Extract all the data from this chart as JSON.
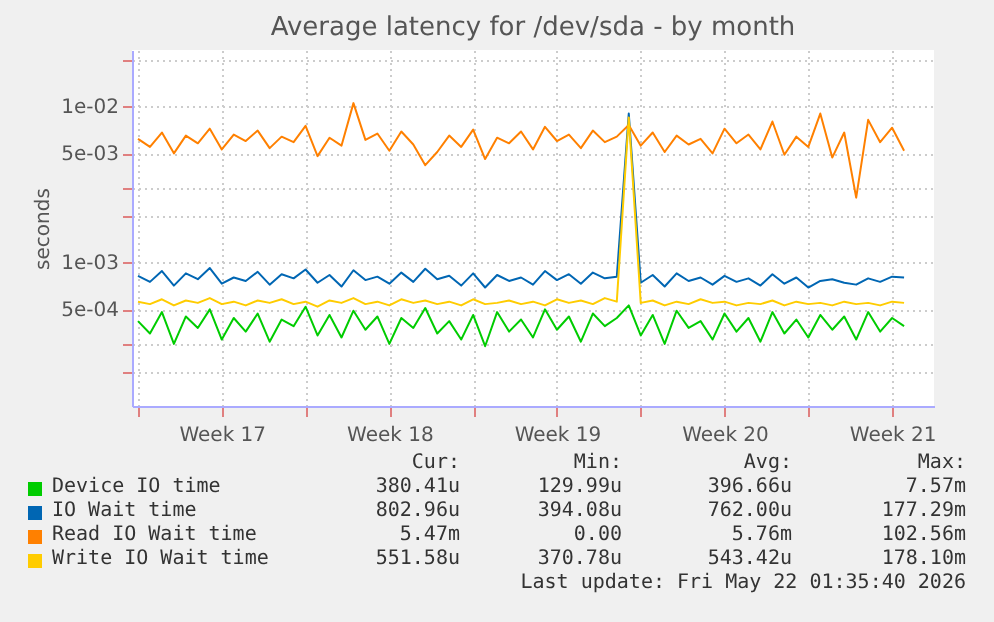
{
  "chart_data": {
    "type": "line",
    "title": "Average latency for /dev/sda - by month",
    "ylabel": "seconds",
    "log": "y",
    "grid": true,
    "legend": "bottom",
    "x": [
      "2026-04-20T00:00",
      "2026-04-20T12:00",
      "2026-04-21T00:00",
      "2026-04-21T12:00",
      "2026-04-22T00:00",
      "2026-04-22T12:00",
      "2026-04-23T00:00",
      "2026-04-23T12:00",
      "2026-04-24T00:00",
      "2026-04-24T12:00",
      "2026-04-25T00:00",
      "2026-04-25T12:00",
      "2026-04-26T00:00",
      "2026-04-26T12:00",
      "2026-04-27T00:00",
      "2026-04-27T12:00",
      "2026-04-28T00:00",
      "2026-04-28T12:00",
      "2026-04-29T00:00",
      "2026-04-29T12:00",
      "2026-04-30T00:00",
      "2026-04-30T12:00",
      "2026-05-01T00:00",
      "2026-05-01T12:00",
      "2026-05-02T00:00",
      "2026-05-02T12:00",
      "2026-05-03T00:00",
      "2026-05-03T12:00",
      "2026-05-04T00:00",
      "2026-05-04T12:00",
      "2026-05-05T00:00",
      "2026-05-05T12:00",
      "2026-05-06T00:00",
      "2026-05-06T12:00",
      "2026-05-07T00:00",
      "2026-05-07T12:00",
      "2026-05-08T00:00",
      "2026-05-08T12:00",
      "2026-05-09T00:00",
      "2026-05-09T12:00",
      "2026-05-10T00:00",
      "2026-05-10T12:00",
      "2026-05-11T00:00",
      "2026-05-11T12:00",
      "2026-05-12T00:00",
      "2026-05-12T12:00",
      "2026-05-13T00:00",
      "2026-05-13T12:00",
      "2026-05-14T00:00",
      "2026-05-14T12:00",
      "2026-05-15T00:00",
      "2026-05-15T12:00",
      "2026-05-16T00:00",
      "2026-05-16T12:00",
      "2026-05-17T00:00",
      "2026-05-17T12:00",
      "2026-05-18T00:00",
      "2026-05-18T12:00",
      "2026-05-19T00:00",
      "2026-05-19T12:00",
      "2026-05-20T00:00",
      "2026-05-20T12:00",
      "2026-05-21T00:00",
      "2026-05-21T12:00",
      "2026-05-22T00:00"
    ],
    "xlim": [
      "2026-04-19T18:00",
      "2026-05-23T06:00"
    ],
    "xticks": [
      {
        "value": "2026-04-20T00:00",
        "label": null
      },
      {
        "value": "2026-04-23T12:00",
        "label": "Week 17"
      },
      {
        "value": "2026-04-27T00:00",
        "label": null
      },
      {
        "value": "2026-04-30T12:00",
        "label": "Week 18"
      },
      {
        "value": "2026-05-04T00:00",
        "label": null
      },
      {
        "value": "2026-05-07T12:00",
        "label": "Week 19"
      },
      {
        "value": "2026-05-11T00:00",
        "label": null
      },
      {
        "value": "2026-05-14T12:00",
        "label": "Week 20"
      },
      {
        "value": "2026-05-18T00:00",
        "label": null
      },
      {
        "value": "2026-05-21T12:00",
        "label": "Week 21"
      }
    ],
    "ylim": [
      0.00012,
      0.023
    ],
    "yticks": [
      {
        "value": 0.0002,
        "label": null
      },
      {
        "value": 0.0003,
        "label": null
      },
      {
        "value": 0.0005,
        "label": "5e-04"
      },
      {
        "value": 0.001,
        "label": "1e-03"
      },
      {
        "value": 0.002,
        "label": null
      },
      {
        "value": 0.003,
        "label": null
      },
      {
        "value": 0.005,
        "label": "5e-03"
      },
      {
        "value": 0.01,
        "label": "1e-02"
      },
      {
        "value": 0.02,
        "label": null
      }
    ],
    "series": [
      {
        "name": "Device IO time",
        "color": "#00cc00",
        "values": [
          0.00042,
          0.00035,
          0.00048,
          0.0003,
          0.00045,
          0.00038,
          0.0005,
          0.00032,
          0.00044,
          0.00036,
          0.00047,
          0.00031,
          0.00043,
          0.00039,
          0.00052,
          0.00034,
          0.00046,
          0.00033,
          0.00049,
          0.00037,
          0.00045,
          0.0003,
          0.00044,
          0.00038,
          0.00051,
          0.00035,
          0.00042,
          0.00032,
          0.00046,
          0.00029,
          0.00048,
          0.00036,
          0.00043,
          0.00033,
          0.0005,
          0.00037,
          0.00045,
          0.00031,
          0.00047,
          0.00039,
          0.00044,
          0.00053,
          0.00034,
          0.00046,
          0.0003,
          0.00049,
          0.00038,
          0.00042,
          0.00032,
          0.00047,
          0.00036,
          0.00044,
          0.00031,
          0.00048,
          0.00035,
          0.00043,
          0.00033,
          0.00046,
          0.00037,
          0.00045,
          0.00032,
          0.00048,
          0.00036,
          0.00044,
          0.00039
        ]
      },
      {
        "name": "IO Wait time",
        "color": "#0066b3",
        "values": [
          0.00082,
          0.00075,
          0.00088,
          0.00071,
          0.00085,
          0.00078,
          0.00092,
          0.00073,
          0.0008,
          0.00076,
          0.00087,
          0.00072,
          0.00084,
          0.00079,
          0.0009,
          0.00074,
          0.00083,
          0.0007,
          0.00089,
          0.00077,
          0.00081,
          0.00073,
          0.00086,
          0.00075,
          0.00091,
          0.00078,
          0.00082,
          0.00071,
          0.00085,
          0.00069,
          0.00083,
          0.00076,
          0.0008,
          0.00072,
          0.00088,
          0.00077,
          0.00084,
          0.00073,
          0.00086,
          0.00079,
          0.00081,
          0.009,
          0.00074,
          0.00083,
          0.0007,
          0.00085,
          0.00076,
          0.0008,
          0.00072,
          0.00082,
          0.00075,
          0.00079,
          0.00071,
          0.00084,
          0.00073,
          0.0008,
          0.00069,
          0.00076,
          0.00078,
          0.00074,
          0.00072,
          0.00079,
          0.00075,
          0.00081,
          0.0008
        ]
      },
      {
        "name": "Read IO Wait time",
        "color": "#ff8000",
        "values": [
          0.0062,
          0.0055,
          0.0068,
          0.005,
          0.0065,
          0.0058,
          0.0072,
          0.0053,
          0.0066,
          0.006,
          0.007,
          0.0054,
          0.0064,
          0.0059,
          0.0075,
          0.0048,
          0.0063,
          0.0056,
          0.0105,
          0.0061,
          0.0067,
          0.0052,
          0.0069,
          0.0057,
          0.0042,
          0.0051,
          0.0065,
          0.0055,
          0.0071,
          0.0046,
          0.0063,
          0.0058,
          0.0069,
          0.0053,
          0.0074,
          0.006,
          0.0066,
          0.0054,
          0.007,
          0.0059,
          0.0064,
          0.0076,
          0.0056,
          0.0068,
          0.0051,
          0.0065,
          0.0057,
          0.0062,
          0.005,
          0.0072,
          0.0058,
          0.0066,
          0.0053,
          0.008,
          0.0049,
          0.0064,
          0.0055,
          0.009,
          0.0047,
          0.0068,
          0.0026,
          0.0082,
          0.0059,
          0.0073,
          0.0052
        ]
      },
      {
        "name": "Write IO Wait time",
        "color": "#ffcc00",
        "values": [
          0.00056,
          0.00054,
          0.00058,
          0.00053,
          0.00057,
          0.00055,
          0.00059,
          0.00054,
          0.00056,
          0.00053,
          0.00057,
          0.00055,
          0.00058,
          0.00054,
          0.00056,
          0.00052,
          0.00057,
          0.00055,
          0.00059,
          0.00054,
          0.00056,
          0.00053,
          0.00058,
          0.00055,
          0.00057,
          0.00054,
          0.00056,
          0.00053,
          0.00058,
          0.00054,
          0.00055,
          0.00057,
          0.00054,
          0.00056,
          0.00053,
          0.00058,
          0.00055,
          0.00057,
          0.00054,
          0.00059,
          0.00056,
          0.0085,
          0.00055,
          0.00057,
          0.00053,
          0.00056,
          0.00054,
          0.00058,
          0.00055,
          0.00056,
          0.00053,
          0.00055,
          0.00054,
          0.00057,
          0.00053,
          0.00056,
          0.00054,
          0.00055,
          0.00053,
          0.00056,
          0.00054,
          0.00055,
          0.00053,
          0.00056,
          0.00055
        ]
      }
    ],
    "annotations": [
      "Cur:",
      "Min:",
      "Avg:",
      "Max:",
      "380.41u",
      "129.99u",
      "396.66u",
      "7.57m",
      "802.96u",
      "394.08u",
      "762.00u",
      "177.29m",
      "5.47m",
      "0.00",
      "5.76m",
      "102.56m",
      "551.58u",
      "370.78u",
      "543.42u",
      "178.10m",
      "Last update: Fri May 22 01:35:40 2026"
    ]
  }
}
